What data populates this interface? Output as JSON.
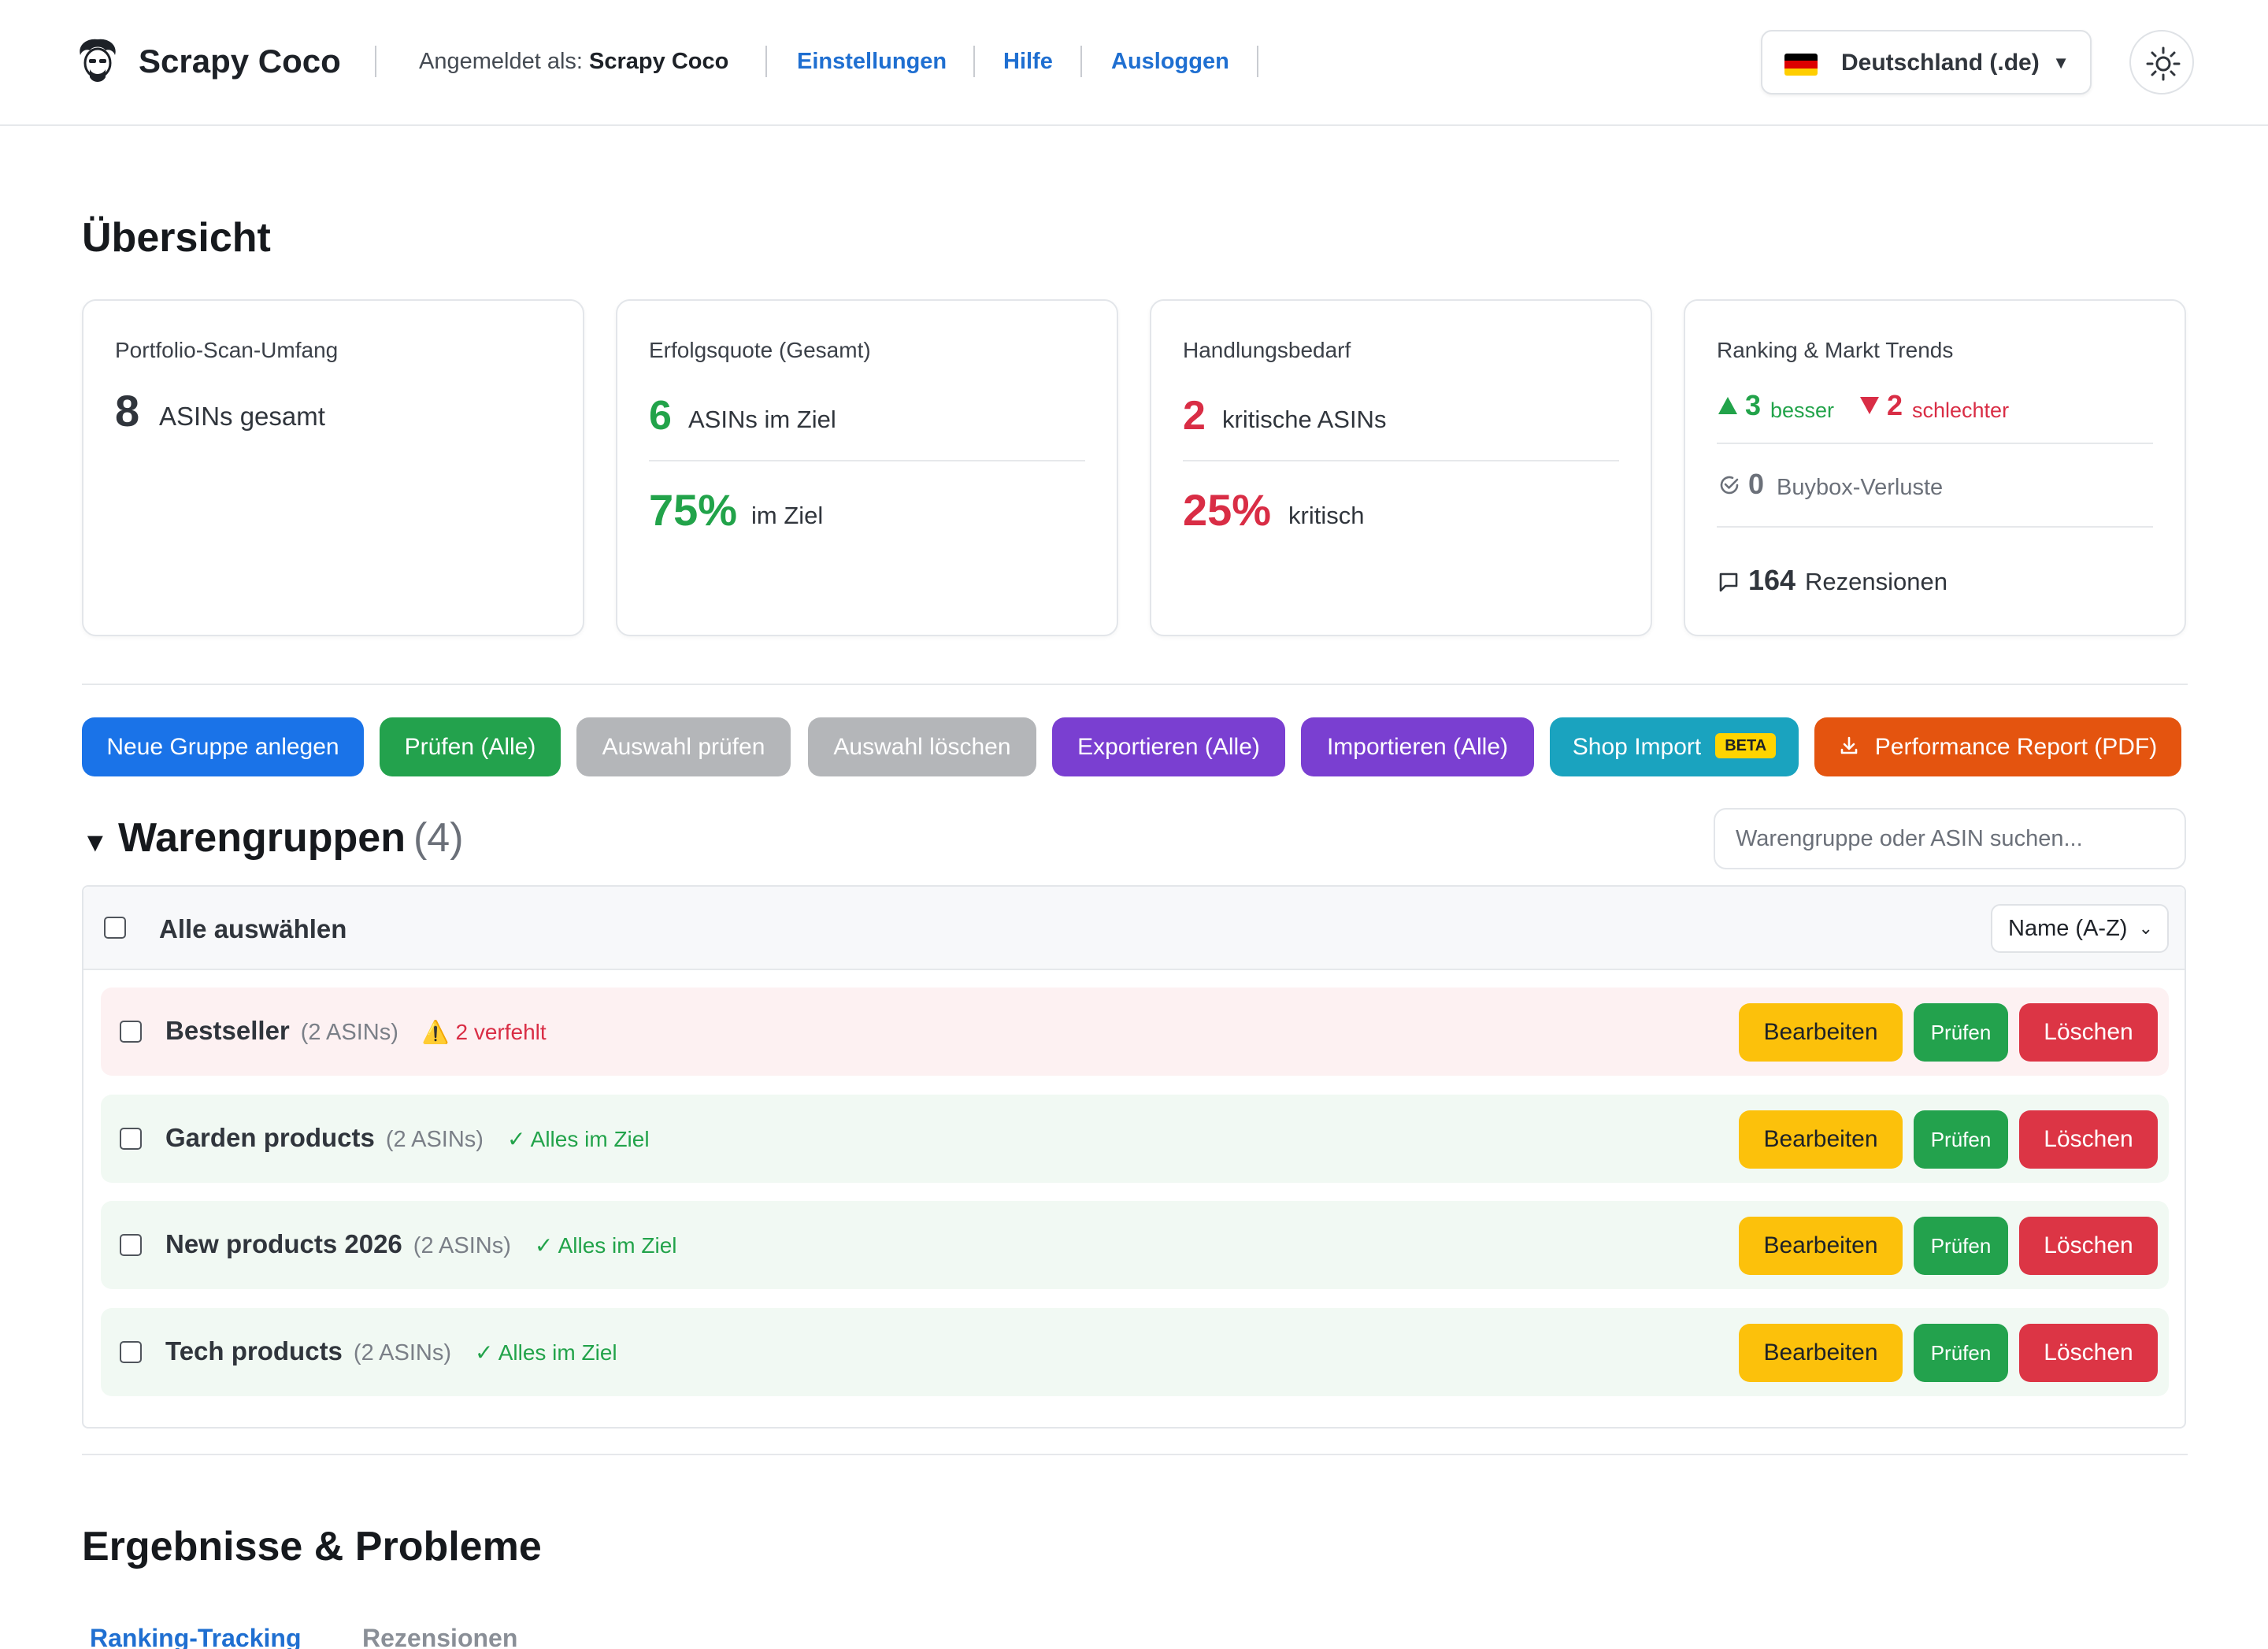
{
  "header": {
    "brand": "Scrapy Coco",
    "logged_in_label": "Angemeldet als:",
    "logged_in_user": "Scrapy Coco",
    "links": [
      "Einstellungen",
      "Hilfe",
      "Ausloggen"
    ],
    "country": "Deutschland (.de)",
    "country_caret": "▼",
    "flag_colors": [
      "#000000",
      "#dd0000",
      "#ffce00"
    ]
  },
  "overview": {
    "title": "Übersicht",
    "cards": {
      "scan": {
        "title": "Portfolio-Scan-Umfang",
        "value": "8",
        "unit": "ASINs gesamt"
      },
      "success": {
        "title": "Erfolgsquote (Gesamt)",
        "value": "6",
        "unit": "ASINs im Ziel",
        "percent": "75%",
        "percent_unit": "im Ziel"
      },
      "action": {
        "title": "Handlungsbedarf",
        "value": "2",
        "unit": "kritische ASINs",
        "percent": "25%",
        "percent_unit": "kritisch"
      },
      "trends": {
        "title": "Ranking & Markt Trends",
        "better_value": "3",
        "better_label": "besser",
        "worse_value": "2",
        "worse_label": "schlechter",
        "buybox_value": "0",
        "buybox_label": "Buybox-Verluste",
        "reviews_value": "164",
        "reviews_label": "Rezensionen"
      }
    }
  },
  "toolbar": {
    "new_group": "Neue Gruppe anlegen",
    "check_all": "Prüfen (Alle)",
    "check_selection": "Auswahl prüfen",
    "delete_selection": "Auswahl löschen",
    "export_all": "Exportieren (Alle)",
    "import_all": "Importieren (Alle)",
    "shop_import": "Shop Import",
    "shop_import_badge": "BETA",
    "performance_report": "Performance Report (PDF)"
  },
  "groups": {
    "title": "Warengruppen",
    "count": "(4)",
    "search_placeholder": "Warengruppe oder ASIN suchen...",
    "select_all": "Alle auswählen",
    "sort_value": "Name (A-Z)",
    "rows": [
      {
        "name": "Bestseller",
        "count": "(2 ASINs)",
        "status": "⚠️ 2 verfehlt",
        "state": "error"
      },
      {
        "name": "Garden products",
        "count": "(2 ASINs)",
        "status": "✓ Alles im Ziel",
        "state": "ok"
      },
      {
        "name": "New products 2026",
        "count": "(2 ASINs)",
        "status": "✓ Alles im Ziel",
        "state": "ok"
      },
      {
        "name": "Tech products",
        "count": "(2 ASINs)",
        "status": "✓ Alles im Ziel",
        "state": "ok"
      }
    ],
    "row_actions": {
      "edit": "Bearbeiten",
      "check": "Prüfen",
      "delete": "Löschen"
    }
  },
  "results": {
    "title": "Ergebnisse & Probleme",
    "tabs": [
      "Ranking-Tracking",
      "Rezensionen"
    ]
  }
}
